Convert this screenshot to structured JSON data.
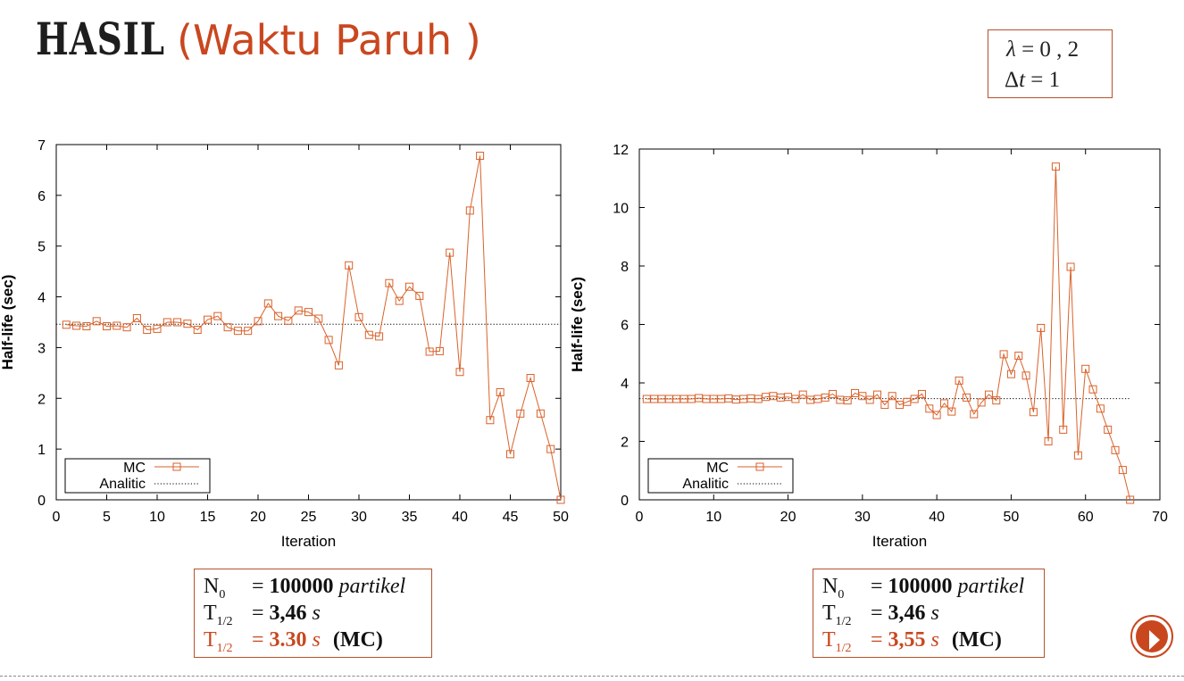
{
  "header": {
    "title_main": "HASIL",
    "title_sub": "(Waktu Paruh )"
  },
  "params": {
    "lambda_symbol": "λ",
    "lambda_value": "= 0 , 2",
    "dt_symbol": "Δ",
    "dt_var": "t",
    "dt_value": "= 1"
  },
  "colors": {
    "accent": "#c9471f",
    "series": "#d9622b",
    "axis": "#000000"
  },
  "chart_data": [
    {
      "type": "line",
      "xlabel": "Iteration",
      "ylabel": "Half-life (sec)",
      "xlim": [
        0,
        50
      ],
      "ylim": [
        0,
        7
      ],
      "xticks": [
        0,
        5,
        10,
        15,
        20,
        25,
        30,
        35,
        40,
        45,
        50
      ],
      "yticks": [
        0,
        1,
        2,
        3,
        4,
        5,
        6,
        7
      ],
      "legend_position": "bottom-left",
      "series": [
        {
          "name": "MC",
          "style": "line-square-markers",
          "x": [
            1,
            2,
            3,
            4,
            5,
            6,
            7,
            8,
            9,
            10,
            11,
            12,
            13,
            14,
            15,
            16,
            17,
            18,
            19,
            20,
            21,
            22,
            23,
            24,
            25,
            26,
            27,
            28,
            29,
            30,
            31,
            32,
            33,
            34,
            35,
            36,
            37,
            38,
            39,
            40,
            41,
            42,
            43,
            44,
            45,
            46,
            47,
            48,
            49,
            50
          ],
          "y": [
            3.45,
            3.43,
            3.42,
            3.52,
            3.42,
            3.43,
            3.4,
            3.58,
            3.35,
            3.37,
            3.5,
            3.5,
            3.47,
            3.35,
            3.55,
            3.62,
            3.4,
            3.33,
            3.33,
            3.52,
            3.87,
            3.62,
            3.53,
            3.73,
            3.7,
            3.57,
            3.15,
            2.65,
            4.62,
            3.6,
            3.25,
            3.22,
            4.27,
            3.92,
            4.2,
            4.02,
            2.92,
            2.93,
            4.87,
            2.52,
            5.7,
            6.78,
            1.57,
            2.12,
            0.9,
            1.7,
            2.4,
            1.7,
            1.0,
            0.0
          ]
        },
        {
          "name": "Analitic",
          "style": "dotted",
          "x": [
            0,
            50
          ],
          "y": [
            3.46,
            3.46
          ]
        }
      ]
    },
    {
      "type": "line",
      "xlabel": "Iteration",
      "ylabel": "Half-life (sec)",
      "xlim": [
        0,
        70
      ],
      "ylim": [
        0,
        12
      ],
      "xticks": [
        0,
        10,
        20,
        30,
        40,
        50,
        60,
        70
      ],
      "yticks": [
        0,
        2,
        4,
        6,
        8,
        10,
        12
      ],
      "legend_position": "bottom-left",
      "series": [
        {
          "name": "MC",
          "style": "line-square-markers",
          "x": [
            1,
            2,
            3,
            4,
            5,
            6,
            7,
            8,
            9,
            10,
            11,
            12,
            13,
            14,
            15,
            16,
            17,
            18,
            19,
            20,
            21,
            22,
            23,
            24,
            25,
            26,
            27,
            28,
            29,
            30,
            31,
            32,
            33,
            34,
            35,
            36,
            37,
            38,
            39,
            40,
            41,
            42,
            43,
            44,
            45,
            46,
            47,
            48,
            49,
            50,
            51,
            52,
            53,
            54,
            55,
            56,
            57,
            58,
            59,
            60,
            61,
            62,
            63,
            64,
            65,
            66
          ],
          "y": [
            3.45,
            3.45,
            3.45,
            3.45,
            3.45,
            3.45,
            3.45,
            3.48,
            3.45,
            3.45,
            3.45,
            3.47,
            3.43,
            3.45,
            3.47,
            3.45,
            3.52,
            3.55,
            3.5,
            3.52,
            3.45,
            3.6,
            3.42,
            3.45,
            3.5,
            3.62,
            3.42,
            3.4,
            3.65,
            3.55,
            3.42,
            3.6,
            3.25,
            3.55,
            3.25,
            3.35,
            3.45,
            3.62,
            3.12,
            2.9,
            3.3,
            3.02,
            4.08,
            3.5,
            2.93,
            3.33,
            3.6,
            3.4,
            4.98,
            4.3,
            4.93,
            4.25,
            3.0,
            5.88,
            2.0,
            11.4,
            2.4,
            7.97,
            1.52,
            4.48,
            3.78,
            3.12,
            2.4,
            1.7,
            1.02,
            0.0
          ]
        },
        {
          "name": "Analitic",
          "style": "dotted",
          "x": [
            0,
            66
          ],
          "y": [
            3.46,
            3.46
          ]
        }
      ]
    }
  ],
  "info_boxes": [
    {
      "n0_label": "N",
      "n0_sub": "0",
      "n0_eq": "=",
      "n0_value": "100000",
      "n0_unit": "partikel",
      "t_label": "T",
      "t_sub": "1/2",
      "t_eq": "=",
      "t_value": "3,46",
      "t_unit": "s",
      "mc_label": "T",
      "mc_sub": "1/2",
      "mc_eq": "=",
      "mc_value": "3.30",
      "mc_unit": "s",
      "mc_tag": "(MC)"
    },
    {
      "n0_label": "N",
      "n0_sub": "0",
      "n0_eq": "=",
      "n0_value": "100000",
      "n0_unit": "partikel",
      "t_label": "T",
      "t_sub": "1/2",
      "t_eq": "=",
      "t_value": "3,46",
      "t_unit": "s",
      "mc_label": "T",
      "mc_sub": "1/2",
      "mc_eq": "=",
      "mc_value": "3,55",
      "mc_unit": "s",
      "mc_tag": "(MC)"
    }
  ]
}
